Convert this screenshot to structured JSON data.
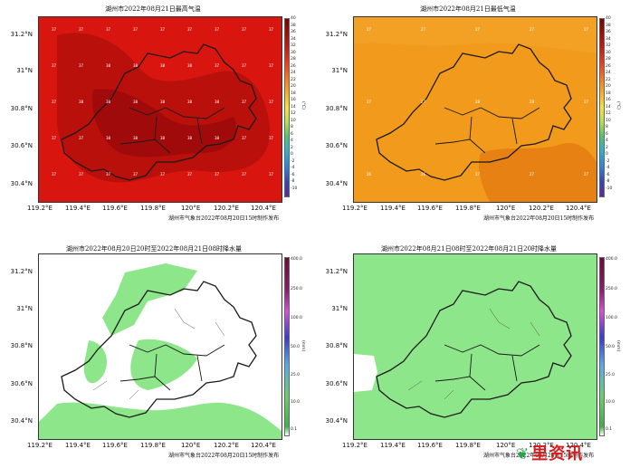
{
  "panels": {
    "p1": {
      "title": "湖州市2022年08月21日最高气温",
      "credit": "湖州市气象台2022年08月20日15时制作发布",
      "unit": "(°C)"
    },
    "p2": {
      "title": "湖州市2022年08月21日最低气温",
      "credit": "湖州市气象台2022年08月20日15时制作发布",
      "unit": "(°C)"
    },
    "p3": {
      "title": "湖州市2022年08月20日20时至2022年08月21日08时降水量",
      "credit": "湖州市气象台2022年08月20日15时制作发布",
      "unit": "(mm)"
    },
    "p4": {
      "title": "湖州市2022年08月21日08时至2022年08月21日20时降水量",
      "credit": "湖州市气象台2022年08月20日15时制作发布",
      "unit": "(mm)"
    }
  },
  "axes": {
    "lat_labels": [
      "31.2°N",
      "31°N",
      "30.8°N",
      "30.6°N",
      "30.4°N"
    ],
    "lon_labels": [
      "119.2°E",
      "119.4°E",
      "119.6°E",
      "119.8°E",
      "120°E",
      "120.2°E",
      "120.4°E"
    ]
  },
  "temp_colorbar_ticks": [
    "40",
    "38",
    "36",
    "34",
    "32",
    "30",
    "28",
    "26",
    "24",
    "22",
    "20",
    "18",
    "16",
    "14",
    "12",
    "10",
    "8",
    "6",
    "4",
    "2",
    "0",
    "-2",
    "-4",
    "-6",
    "-8",
    "-10"
  ],
  "rain_colorbar_ticks": [
    "400.0",
    "250.0",
    "100.0",
    "50.0",
    "25.0",
    "10.0",
    "0.1"
  ],
  "colors": {
    "max_temp_fill": "#d8160f",
    "max_temp_dark": "#9e0a0a",
    "min_temp_fill": "#f29a1c",
    "min_temp_dark": "#e57a12",
    "rain_light": "#8ee68a",
    "boundary": "#222222"
  },
  "watermark": {
    "icon": "leaf-icon",
    "text": "里资讯"
  }
}
